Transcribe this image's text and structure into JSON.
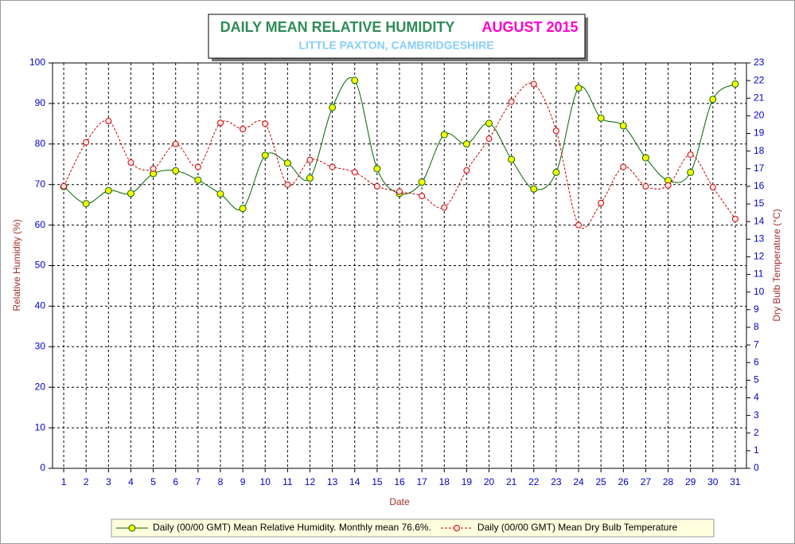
{
  "chart_data": {
    "type": "line",
    "title": "DAILY MEAN RELATIVE HUMIDITY",
    "period": "AUGUST 2015",
    "subtitle": "LITTLE PAXTON, CAMBRIDGESHIRE",
    "x_label": "Date",
    "y_label": "Relative Humidity (%)",
    "y2_label": "Dry Bulb Temperature (°C)",
    "categories": [
      "1",
      "2",
      "3",
      "4",
      "5",
      "6",
      "7",
      "8",
      "9",
      "10",
      "11",
      "12",
      "13",
      "14",
      "15",
      "16",
      "17",
      "18",
      "19",
      "20",
      "21",
      "22",
      "23",
      "24",
      "25",
      "26",
      "27",
      "28",
      "29",
      "30",
      "31"
    ],
    "ylim": [
      0,
      100
    ],
    "yticks": [
      0,
      10,
      20,
      30,
      40,
      50,
      60,
      70,
      80,
      90,
      100
    ],
    "y2lim": [
      0,
      23
    ],
    "y2ticks": [
      0,
      1,
      2,
      3,
      4,
      5,
      6,
      7,
      8,
      9,
      10,
      11,
      12,
      13,
      14,
      15,
      16,
      17,
      18,
      19,
      20,
      21,
      22,
      23
    ],
    "grid": true,
    "series": [
      {
        "name": "Daily (00/00 GMT) Mean Relative Humidity. Monthly mean 76.6%.",
        "color": "#006400",
        "marker_color": "#ffff00",
        "values": [
          69.5,
          65.3,
          68.5,
          67.8,
          72.7,
          73.4,
          71.1,
          67.7,
          64.1,
          77.2,
          75.3,
          71.6,
          89.0,
          95.7,
          73.9,
          67.8,
          70.6,
          82.3,
          80.0,
          85.1,
          76.2,
          68.9,
          73.0,
          93.8,
          86.4,
          84.5,
          76.6,
          71.0,
          73.0,
          91.0,
          94.8
        ]
      },
      {
        "name": "Daily (00/00 GMT) Mean Dry Bulb Temperature",
        "color": "#cc0000",
        "marker_color": "#ffe8e8",
        "axis": "y2",
        "dashed": true,
        "values": [
          16.0,
          18.5,
          19.7,
          17.35,
          17.0,
          18.4,
          17.1,
          19.6,
          19.25,
          19.55,
          16.1,
          17.5,
          17.1,
          16.8,
          16.0,
          15.7,
          15.45,
          14.8,
          16.9,
          18.7,
          20.8,
          21.8,
          19.15,
          13.8,
          15.05,
          17.1,
          16.0,
          16.05,
          17.8,
          15.95,
          14.15
        ]
      }
    ]
  }
}
